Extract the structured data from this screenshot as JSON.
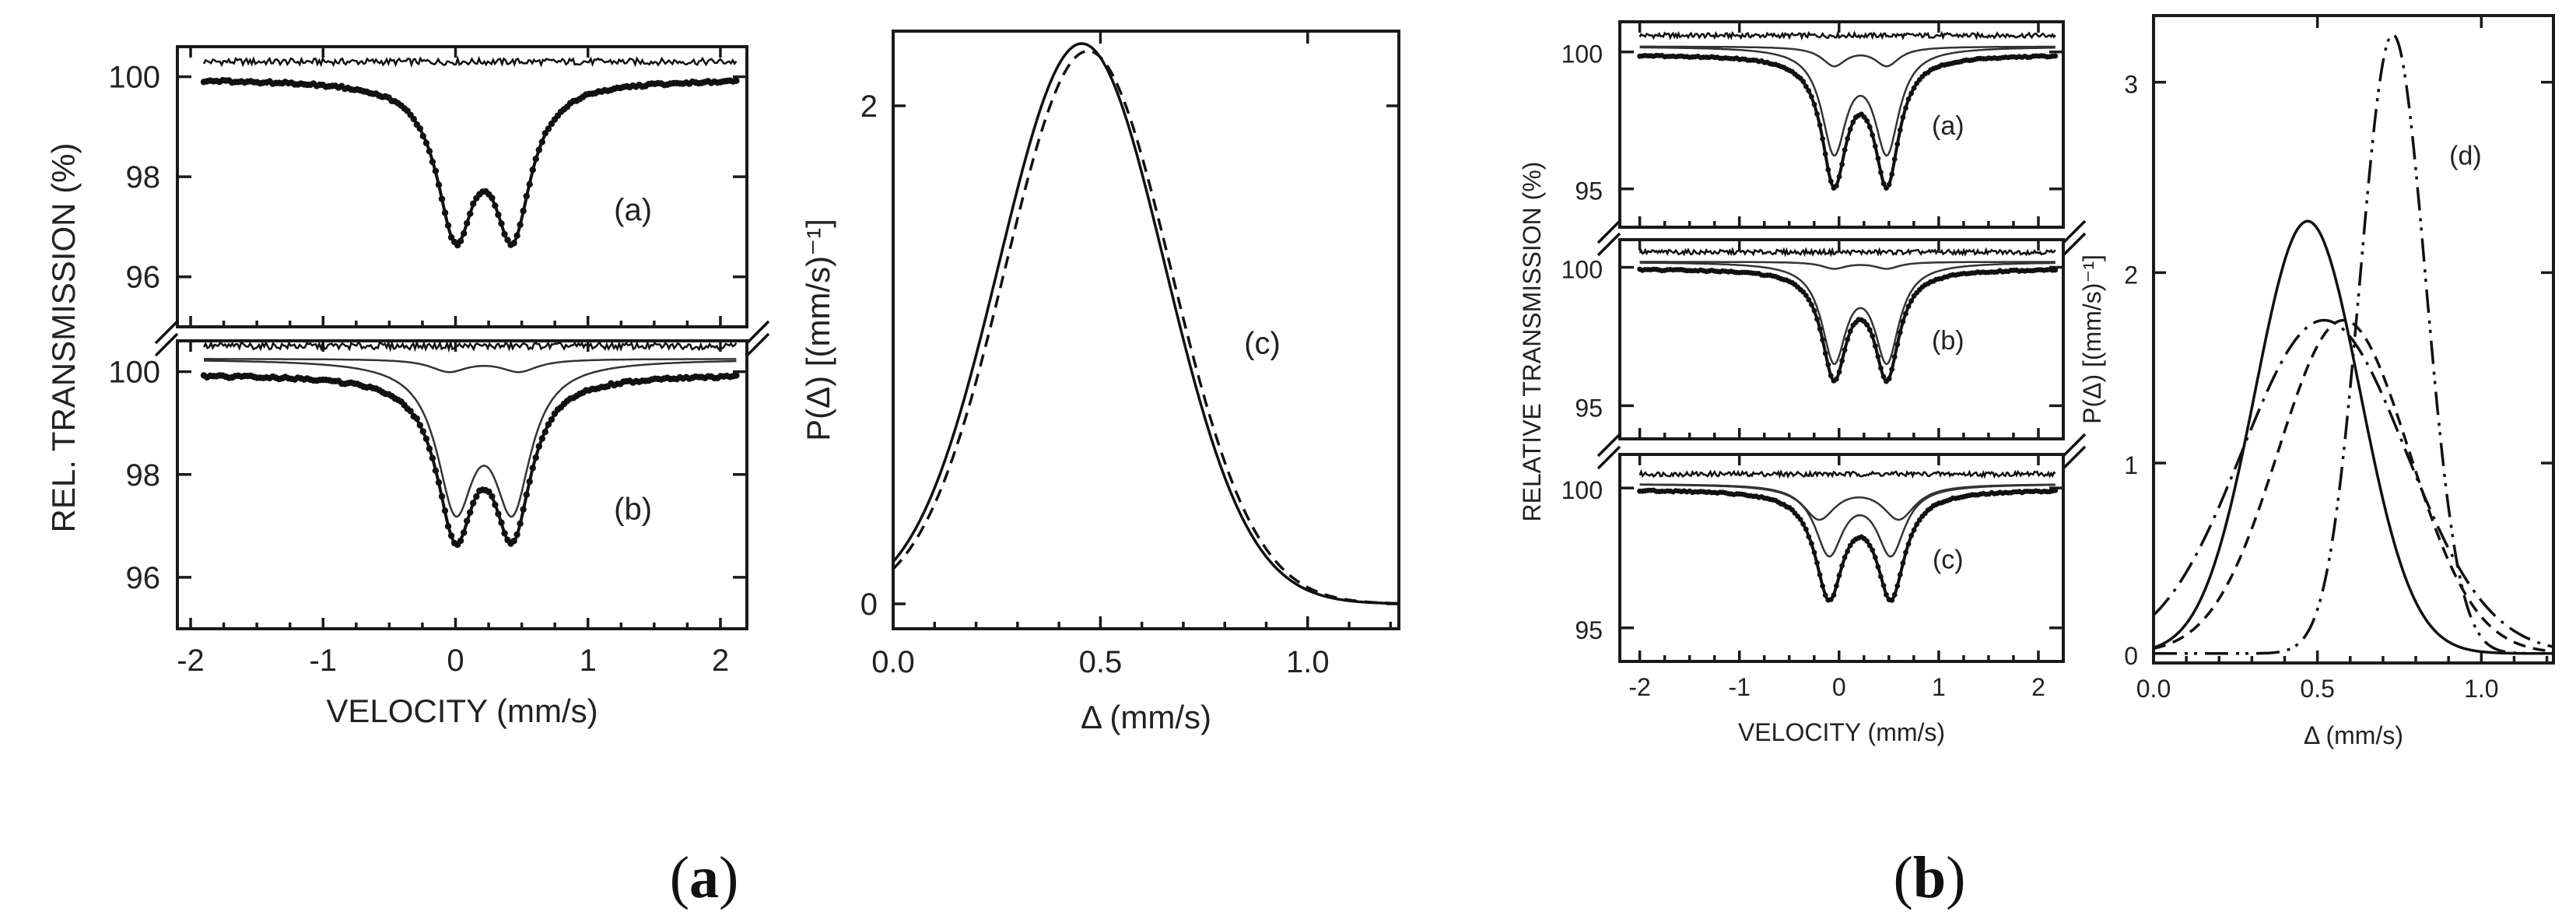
{
  "figure": {
    "caption_a": {
      "open": "(",
      "letter": "a",
      "close": ")"
    },
    "caption_b": {
      "open": "(",
      "letter": "b",
      "close": ")"
    }
  },
  "chart_data": [
    {
      "id": "a_spectra",
      "type": "line",
      "title": "",
      "xlabel": "VELOCITY (mm/s)",
      "ylabel": "REL. TRANSMISSION (%)",
      "xlim": [
        -2.1,
        2.2
      ],
      "xticks": [
        -2,
        -1,
        0,
        1,
        2
      ],
      "panels": [
        {
          "label": "(a)",
          "ylim": [
            95.0,
            100.6
          ],
          "yticks": [
            96,
            98,
            100
          ],
          "doublet": {
            "baseline": 99.95,
            "centers": [
              0.0,
              0.43
            ],
            "gamma": 0.17,
            "depth": 4.3
          },
          "residual_offset": 100.3,
          "components": []
        },
        {
          "label": "(b)",
          "ylim": [
            95.0,
            100.6
          ],
          "yticks": [
            96,
            98,
            100
          ],
          "doublet": {
            "baseline": 99.95,
            "centers": [
              0.0,
              0.43
            ],
            "gamma": 0.17,
            "depth": 4.3
          },
          "residual_offset": 100.5,
          "components": [
            {
              "baseline": 100.25,
              "centers": [
                0.0,
                0.43
              ],
              "gamma": 0.17,
              "depth": 4.0
            },
            {
              "baseline": 100.25,
              "centers": [
                -0.05,
                0.48
              ],
              "gamma": 0.17,
              "depth": 0.35
            }
          ]
        }
      ]
    },
    {
      "id": "a_distribution",
      "type": "line",
      "title": "",
      "xlabel": "Δ (mm/s)",
      "ylabel": "P(Δ) [(mm/s)⁻¹]",
      "xlim": [
        0.0,
        1.22
      ],
      "ylim": [
        -0.1,
        2.3
      ],
      "xticks": [
        0.0,
        0.5,
        1.0
      ],
      "yticks": [
        0,
        2
      ],
      "annotation": "(c)",
      "series": [
        {
          "name": "solid",
          "style": "solid",
          "gaussian": {
            "mu": 0.455,
            "sigma": 0.2,
            "amp": 2.25
          }
        },
        {
          "name": "dashed",
          "style": "dashed",
          "gaussian": {
            "mu": 0.47,
            "sigma": 0.2,
            "amp": 2.22
          }
        }
      ]
    },
    {
      "id": "b_spectra",
      "type": "line",
      "title": "",
      "xlabel": "VELOCITY (mm/s)",
      "ylabel": "RELATIVE TRANSMISSION (%)",
      "xlim": [
        -2.2,
        2.25
      ],
      "xticks": [
        -2,
        -1,
        0,
        1,
        2
      ],
      "panels": [
        {
          "label": "(a)",
          "ylim": [
            93.6,
            101.1
          ],
          "yticks": [
            95,
            100
          ],
          "doublet": {
            "baseline": 99.9,
            "centers": [
              -0.05,
              0.48
            ],
            "gamma": 0.15,
            "depth": 6.7
          },
          "residual_offset": 100.6,
          "components": [
            {
              "baseline": 100.2,
              "centers": [
                -0.05,
                0.48
              ],
              "gamma": 0.15,
              "depth": 5.5
            },
            {
              "baseline": 100.2,
              "centers": [
                -0.05,
                0.48
              ],
              "gamma": 0.15,
              "depth": 1.0
            }
          ]
        },
        {
          "label": "(b)",
          "ylim": [
            93.8,
            101.0
          ],
          "yticks": [
            95,
            100
          ],
          "doublet": {
            "baseline": 99.95,
            "centers": [
              -0.05,
              0.48
            ],
            "gamma": 0.15,
            "depth": 5.6
          },
          "residual_offset": 100.55,
          "components": [
            {
              "baseline": 100.2,
              "centers": [
                -0.05,
                0.48
              ],
              "gamma": 0.15,
              "depth": 5.1
            },
            {
              "baseline": 100.2,
              "centers": [
                -0.05,
                0.48
              ],
              "gamma": 0.15,
              "depth": 0.35
            }
          ]
        },
        {
          "label": "(c)",
          "ylim": [
            93.8,
            101.2
          ],
          "yticks": [
            95,
            100
          ],
          "doublet": {
            "baseline": 99.95,
            "centers": [
              -0.1,
              0.52
            ],
            "gamma": 0.17,
            "depth": 5.5
          },
          "residual_offset": 100.5,
          "components": [
            {
              "baseline": 100.15,
              "centers": [
                -0.1,
                0.52
              ],
              "gamma": 0.17,
              "depth": 3.6
            },
            {
              "baseline": 100.15,
              "centers": [
                -0.2,
                0.6
              ],
              "gamma": 0.2,
              "depth": 1.8
            }
          ]
        }
      ]
    },
    {
      "id": "b_distribution",
      "type": "line",
      "title": "",
      "xlabel": "Δ (mm/s)",
      "ylabel": "P(Δ) [(mm/s)⁻¹]",
      "xlim": [
        0.0,
        1.22
      ],
      "ylim": [
        -0.05,
        3.35
      ],
      "xticks": [
        0.0,
        0.5,
        1.0
      ],
      "yticks": [
        0,
        1,
        2,
        3
      ],
      "annotation": "(d)",
      "series": [
        {
          "name": "solid",
          "style": "solid",
          "gaussian": {
            "mu": 0.47,
            "sigma": 0.16,
            "amp": 2.27
          }
        },
        {
          "name": "dash-dot",
          "style": "dashdot",
          "gaussian": {
            "mu": 0.52,
            "sigma": 0.25,
            "amp": 1.75
          }
        },
        {
          "name": "dashed",
          "style": "dashed",
          "gaussian": {
            "mu": 0.58,
            "sigma": 0.2,
            "amp": 1.75
          }
        },
        {
          "name": "dash-dot-dot",
          "style": "dashdotdot",
          "gaussian": {
            "mu": 0.73,
            "sigma": 0.1,
            "amp": 3.25
          }
        }
      ]
    }
  ]
}
